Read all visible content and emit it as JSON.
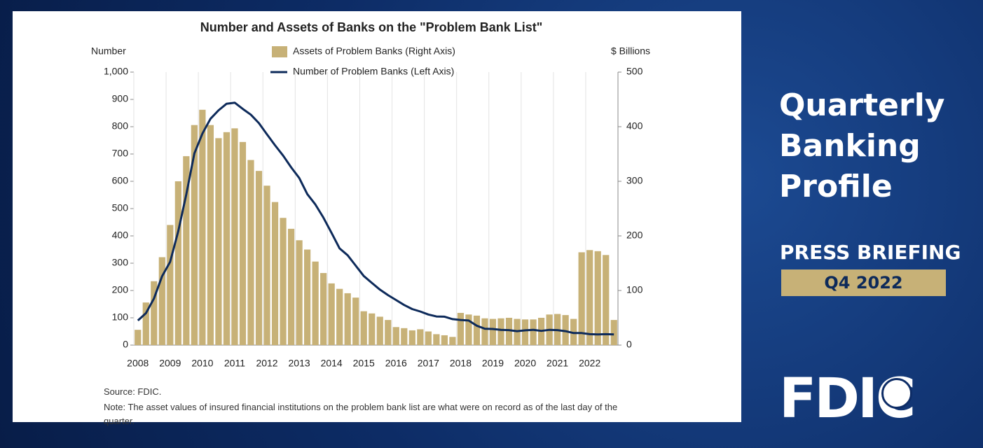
{
  "slide": {
    "title": "Quarterly Banking Profile",
    "subtitle": "PRESS BRIEFING",
    "period": "Q4 2022",
    "logo": "FDIC"
  },
  "chart_data": {
    "type": "bar",
    "title": "Number and Assets of Banks on the \"Problem Bank List\"",
    "y_label": "Number",
    "y2_label": "$ Billions",
    "source": "Source: FDIC.",
    "note": "Note: The asset values of insured financial institutions on the problem bank list are what were on record as of the last day of the quarter.",
    "categories": [
      "2008",
      null,
      null,
      null,
      "2009",
      null,
      null,
      null,
      "2010",
      null,
      null,
      null,
      "2011",
      null,
      null,
      null,
      "2012",
      null,
      null,
      null,
      "2013",
      null,
      null,
      null,
      "2014",
      null,
      null,
      null,
      "2015",
      null,
      null,
      null,
      "2016",
      null,
      null,
      null,
      "2017",
      null,
      null,
      null,
      "2018",
      null,
      null,
      null,
      "2019",
      null,
      null,
      null,
      "2020",
      null,
      null,
      null,
      "2021",
      null,
      null,
      null,
      "2022",
      null,
      null,
      null
    ],
    "series": [
      {
        "name": "Assets of Problem Banks (Right Axis)",
        "type": "bar",
        "axis": "y2",
        "color": "#c7b177",
        "values": [
          28,
          78,
          117,
          161,
          220,
          300,
          346,
          403,
          431,
          403,
          379,
          390,
          397,
          372,
          339,
          319,
          292,
          262,
          233,
          213,
          192,
          175,
          153,
          132,
          113,
          103,
          95,
          87,
          62,
          58,
          52,
          46,
          33,
          31,
          27,
          29,
          25,
          20,
          18,
          15,
          59,
          56,
          54,
          49,
          48,
          49,
          50,
          48,
          47,
          47,
          50,
          56,
          57,
          55,
          48,
          170,
          174,
          172,
          165,
          46
        ]
      },
      {
        "name": "Number of Problem Banks (Left Axis)",
        "type": "line",
        "color": "#0d2a5a",
        "values": [
          90,
          117,
          171,
          252,
          305,
          416,
          552,
          702,
          775,
          829,
          860,
          884,
          888,
          865,
          844,
          813,
          772,
          732,
          694,
          651,
          612,
          553,
          515,
          467,
          411,
          354,
          329,
          291,
          253,
          228,
          203,
          183,
          165,
          147,
          132,
          123,
          112,
          105,
          104,
          95,
          92,
          90,
          71,
          60,
          59,
          56,
          55,
          51,
          54,
          56,
          52,
          56,
          55,
          51,
          44,
          44,
          40,
          39,
          40,
          39
        ]
      }
    ],
    "ylim": [
      0,
      1000
    ],
    "yticks": [
      0,
      100,
      200,
      300,
      400,
      500,
      600,
      700,
      800,
      900,
      {
        "value": 1000,
        "label": "1,000"
      }
    ],
    "y2lim": [
      0,
      500
    ],
    "y2ticks": [
      0,
      100,
      200,
      300,
      400,
      500
    ]
  }
}
